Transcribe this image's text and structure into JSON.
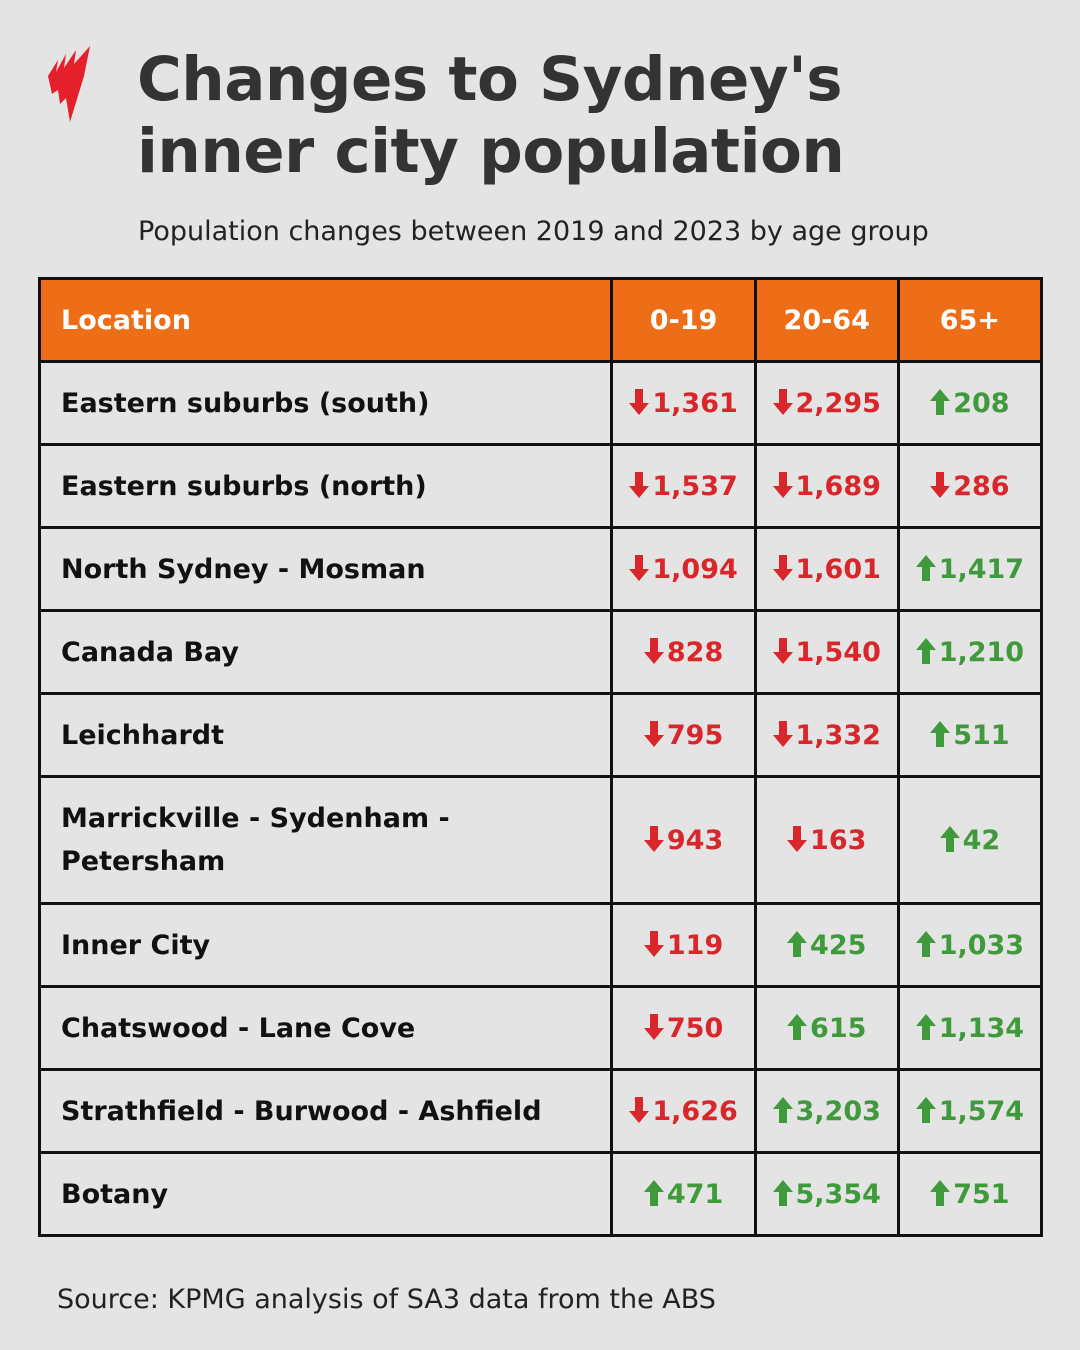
{
  "title": "Changes to Sydney's inner city population",
  "subtitle": "Population changes between 2019 and 2023 by age group",
  "source": "Source: KPMG analysis of SA3 data from the ABS",
  "colors": {
    "header": "#ee6e17",
    "decrease": "#d9262a",
    "increase": "#3e9a3a",
    "logo": "#e5202a"
  },
  "icons": {
    "decrease": "arrow-down-icon",
    "increase": "arrow-up-icon",
    "logo": "sbs-logo"
  },
  "chart_data": {
    "type": "table",
    "columns": [
      "Location",
      "0-19",
      "20-64",
      "65+"
    ],
    "rows": [
      {
        "location": "Eastern suburbs (south)",
        "cells": [
          {
            "text": "1,361",
            "dir": "down"
          },
          {
            "text": "2,295",
            "dir": "down"
          },
          {
            "text": "208",
            "dir": "up"
          }
        ]
      },
      {
        "location": "Eastern suburbs (north)",
        "cells": [
          {
            "text": "1,537",
            "dir": "down"
          },
          {
            "text": "1,689",
            "dir": "down"
          },
          {
            "text": "286",
            "dir": "down"
          }
        ]
      },
      {
        "location": "North Sydney - Mosman",
        "cells": [
          {
            "text": "1,094",
            "dir": "down"
          },
          {
            "text": "1,601",
            "dir": "down"
          },
          {
            "text": "1,417",
            "dir": "up"
          }
        ]
      },
      {
        "location": "Canada Bay",
        "cells": [
          {
            "text": "828",
            "dir": "down"
          },
          {
            "text": "1,540",
            "dir": "down"
          },
          {
            "text": "1,210",
            "dir": "up"
          }
        ]
      },
      {
        "location": "Leichhardt",
        "cells": [
          {
            "text": "795",
            "dir": "down"
          },
          {
            "text": "1,332",
            "dir": "down"
          },
          {
            "text": "511",
            "dir": "up"
          }
        ]
      },
      {
        "location": "Marrickville - Sydenham - Petersham",
        "cells": [
          {
            "text": "943",
            "dir": "down"
          },
          {
            "text": "163",
            "dir": "down"
          },
          {
            "text": "42",
            "dir": "up"
          }
        ]
      },
      {
        "location": "Inner City",
        "cells": [
          {
            "text": "119",
            "dir": "down"
          },
          {
            "text": "425",
            "dir": "up"
          },
          {
            "text": "1,033",
            "dir": "up"
          }
        ]
      },
      {
        "location": "Chatswood - Lane Cove",
        "cells": [
          {
            "text": "750",
            "dir": "down"
          },
          {
            "text": "615",
            "dir": "up"
          },
          {
            "text": "1,134",
            "dir": "up"
          }
        ]
      },
      {
        "location": "Strathfield - Burwood - Ashfield",
        "cells": [
          {
            "text": "1,626",
            "dir": "down"
          },
          {
            "text": "3,203",
            "dir": "up"
          },
          {
            "text": "1,574",
            "dir": "up"
          }
        ]
      },
      {
        "location": "Botany",
        "cells": [
          {
            "text": "471",
            "dir": "up"
          },
          {
            "text": "5,354",
            "dir": "up"
          },
          {
            "text": "751",
            "dir": "up"
          }
        ]
      }
    ]
  }
}
